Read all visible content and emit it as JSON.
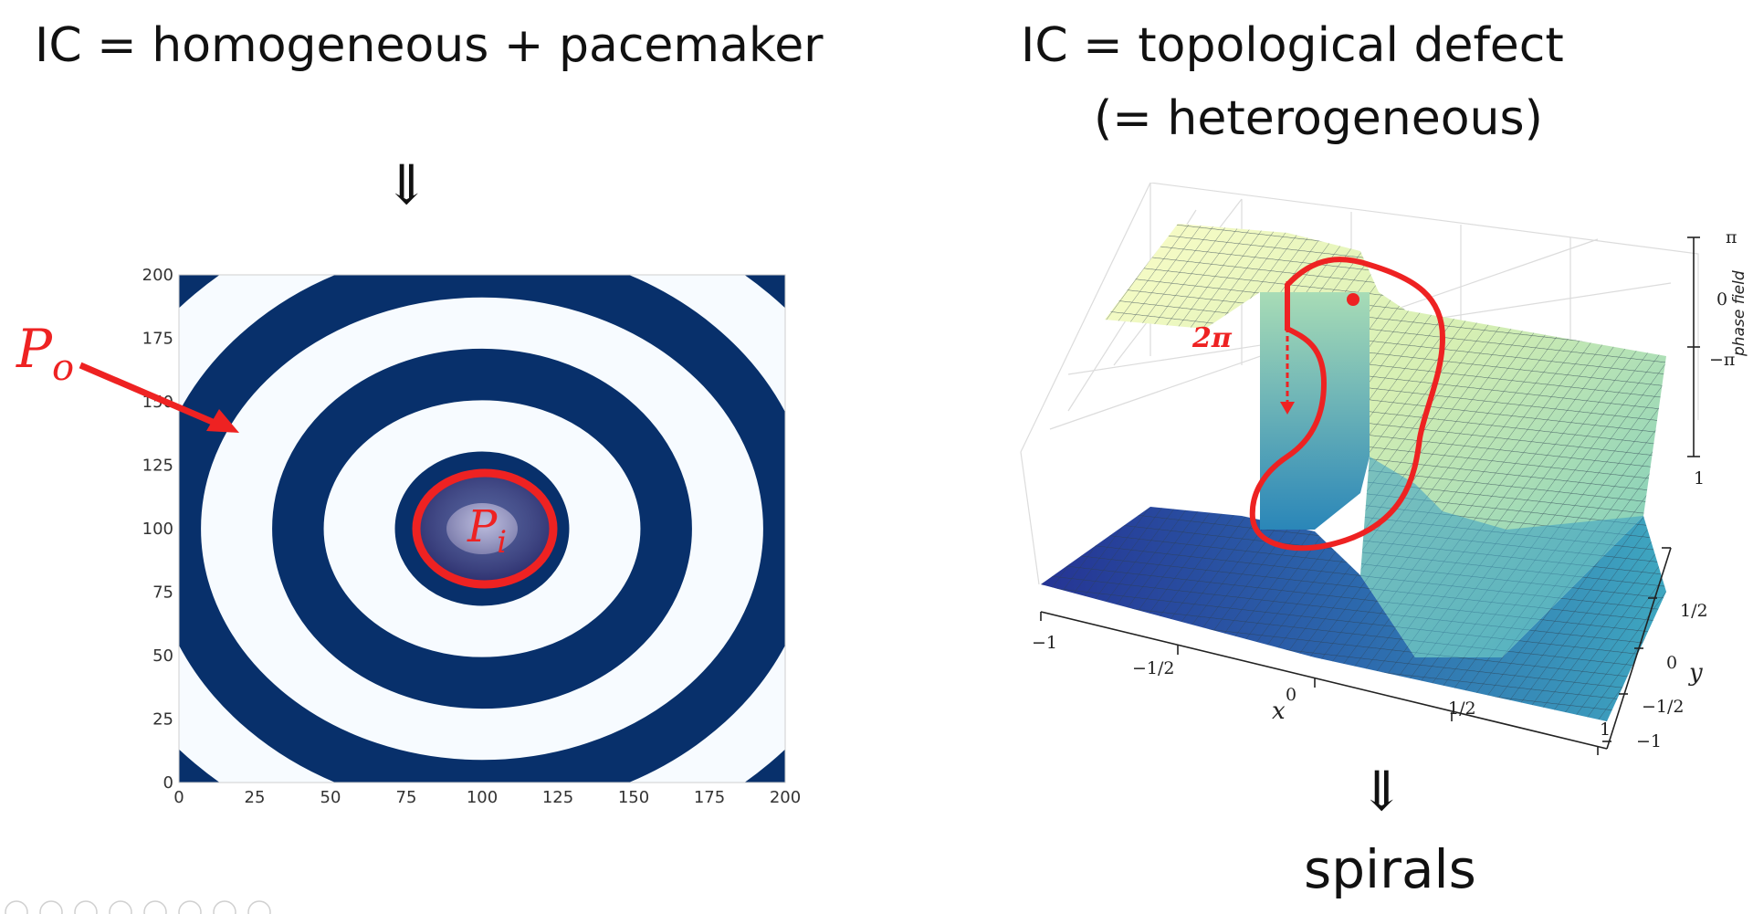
{
  "left": {
    "title": "IC = homogeneous + pacemaker",
    "arrow": "⇓",
    "annotations": {
      "outer": "P",
      "outer_sub": "o",
      "inner": "P",
      "inner_sub": "i"
    },
    "chart_data": {
      "type": "heatmap",
      "title": "",
      "xlabel": "",
      "ylabel": "",
      "xlim": [
        0,
        200
      ],
      "ylim": [
        0,
        200
      ],
      "xticks": [
        "0",
        "25",
        "50",
        "75",
        "100",
        "125",
        "150",
        "175",
        "200"
      ],
      "yticks": [
        "0",
        "25",
        "50",
        "75",
        "100",
        "125",
        "150",
        "175",
        "200"
      ],
      "center": [
        100,
        100
      ],
      "description_values": {
        "ring_spacing": 40.5
      },
      "colormap": [
        "#08306b",
        "#f7fbff"
      ]
    }
  },
  "right": {
    "title_line1": "IC = topological defect",
    "title_line2": "(= heterogeneous)",
    "arrow": "⇓",
    "result": "spirals",
    "annotation": "2π",
    "chart_data": {
      "type": "surface",
      "xlabel": "x",
      "ylabel": "y",
      "zlabel": "phase field",
      "xticks": [
        "−1",
        "−1/2",
        "0",
        "1/2",
        "1"
      ],
      "yticks": [
        "−1",
        "−1/2",
        "0",
        "1/2",
        "1"
      ],
      "zticks": [
        "−π",
        "0",
        "π"
      ],
      "colormap": [
        "#253494",
        "#41b6c4",
        "#ffffcc"
      ]
    }
  },
  "colors": {
    "highlight": "#ee2222"
  }
}
